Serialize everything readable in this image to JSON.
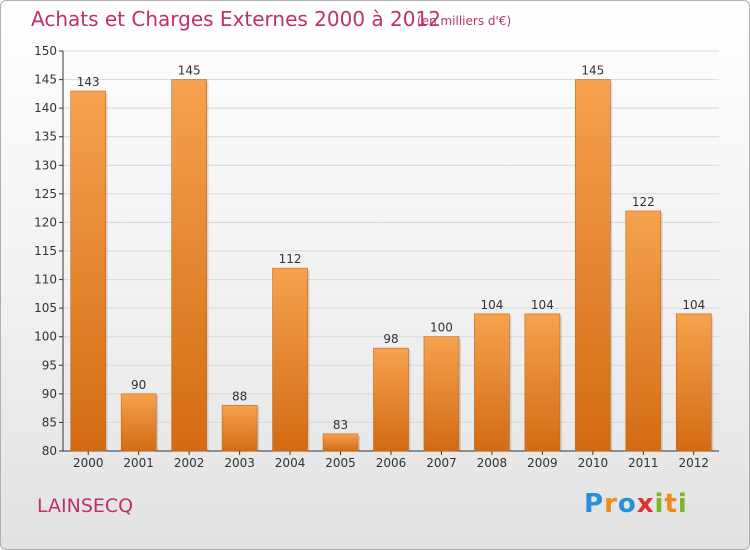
{
  "header": {
    "title": "Achats et Charges Externes 2000 à 2012",
    "subtitle": "(en milliers d'€)"
  },
  "footer": {
    "place": "LAINSECQ",
    "logo_text": "Proxiti"
  },
  "colors": {
    "bar_top": "#f6a24e",
    "bar_bottom": "#d36b14",
    "title": "#c0306a",
    "axis": "#333333",
    "grid": "#d8d8d8"
  },
  "chart_data": {
    "type": "bar",
    "title": "Achats et Charges Externes 2000 à 2012",
    "subtitle": "(en milliers d'€)",
    "categories": [
      "2000",
      "2001",
      "2002",
      "2003",
      "2004",
      "2005",
      "2006",
      "2007",
      "2008",
      "2009",
      "2010",
      "2011",
      "2012"
    ],
    "values": [
      143,
      90,
      145,
      88,
      112,
      83,
      98,
      100,
      104,
      104,
      145,
      122,
      104
    ],
    "ylim": [
      80,
      150
    ],
    "yticks": [
      80,
      85,
      90,
      95,
      100,
      105,
      110,
      115,
      120,
      125,
      130,
      135,
      140,
      145,
      150
    ],
    "grid": true,
    "data_labels": true
  }
}
